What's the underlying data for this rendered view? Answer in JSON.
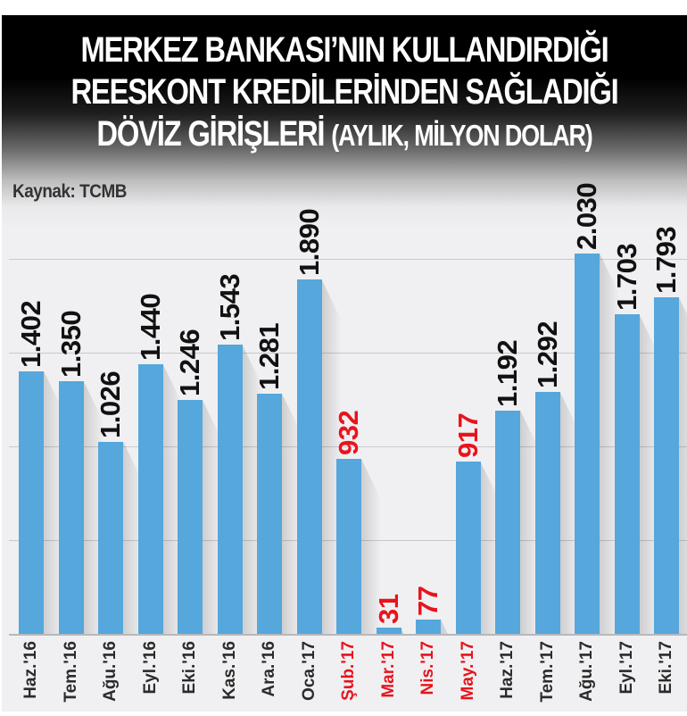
{
  "title": {
    "line1": "MERKEZ BANKASI’NIN KULLANDIRDIĞI",
    "line2": "REESKONT KREDİLERİNDEN SAĞLADIĞI",
    "line3_main": "DÖVİZ GİRİŞLERİ",
    "line3_sub": "(AYLIK, MİLYON DOLAR)"
  },
  "source": "Kaynak: TCMB",
  "colors": {
    "bar": "#55a7dc",
    "highlight_text": "#e8141c",
    "normal_text": "#111111",
    "header_bg": "#000000",
    "plot_bg": "#f0f0f2"
  },
  "chart_data": {
    "type": "bar",
    "title": "MERKEZ BANKASI’NIN KULLANDIRDIĞI REESKONT KREDİLERİNDEN SAĞLADIĞI DÖVİZ GİRİŞLERİ (AYLIK, MİLYON DOLAR)",
    "subtitle": "Kaynak: TCMB",
    "xlabel": "",
    "ylabel": "Milyon dolar",
    "ylim": [
      0,
      2000
    ],
    "grid": true,
    "gridlines": [
      500,
      1000,
      1500,
      2000
    ],
    "legend": null,
    "categories": [
      "Haz.'16",
      "Tem.'16",
      "Ağu.'16",
      "Eyl.'16",
      "Eki.'16",
      "Kas.'16",
      "Ara.'16",
      "Oca.'17",
      "Şub.'17",
      "Mar.'17",
      "Nis.'17",
      "May.'17",
      "Haz.'17",
      "Tem.'17",
      "Ağu.'17",
      "Eyl.'17",
      "Eki.'17"
    ],
    "values": [
      1402,
      1350,
      1026,
      1440,
      1246,
      1543,
      1281,
      1890,
      932,
      31,
      77,
      917,
      1192,
      1292,
      2030,
      1703,
      1793
    ],
    "value_labels": [
      "1.402",
      "1.350",
      "1.026",
      "1.440",
      "1.246",
      "1.543",
      "1.281",
      "1.890",
      "932",
      "31",
      "77",
      "917",
      "1.192",
      "1.292",
      "2.030",
      "1.703",
      "1.793"
    ],
    "highlighted": [
      false,
      false,
      false,
      false,
      false,
      false,
      false,
      false,
      true,
      true,
      true,
      true,
      false,
      false,
      false,
      false,
      false
    ]
  }
}
